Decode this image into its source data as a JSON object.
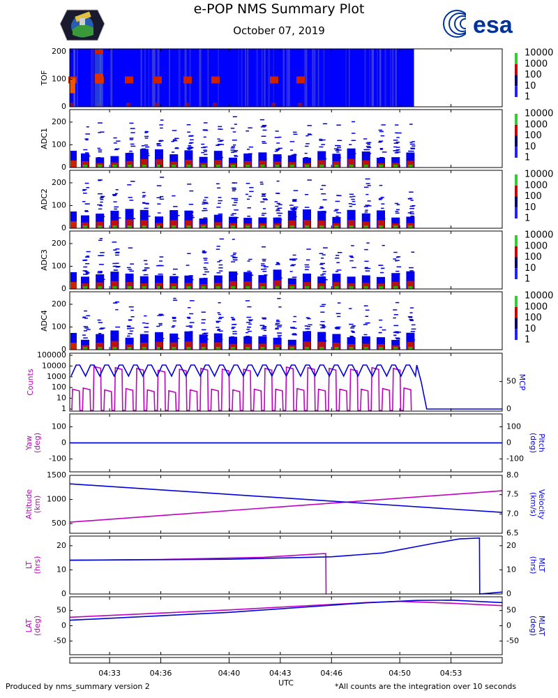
{
  "header": {
    "title": "e-POP NMS Summary Plot",
    "date": "October 07, 2019",
    "esa_logo_text": "esa"
  },
  "footer": {
    "left": "Produced by nms_summary version 2",
    "right": "*All counts are the integration over 10 seconds"
  },
  "colors": {
    "magenta": "#c000c0",
    "blue": "#0000dd",
    "spectrogram_bg": "#0000ff",
    "esa_blue": "#003399"
  },
  "chart_data": [
    {
      "type": "heatmap",
      "panel": "tof",
      "ylabel": "TOF",
      "yticks": [
        "0",
        "100",
        "200"
      ],
      "ylim": [
        0,
        210
      ],
      "colorbar_labels": [
        "10000",
        "1000",
        "100",
        "10",
        "1"
      ],
      "data_end_time": "04:50:50"
    },
    {
      "type": "heatmap",
      "panel": "adc1",
      "ylabel": "ADC1",
      "yticks": [
        "0",
        "100",
        "200"
      ],
      "ylim": [
        0,
        255
      ],
      "colorbar_labels": [
        "10000",
        "1000",
        "100",
        "10",
        "1"
      ]
    },
    {
      "type": "heatmap",
      "panel": "adc2",
      "ylabel": "ADC2",
      "yticks": [
        "0",
        "100",
        "200"
      ],
      "ylim": [
        0,
        255
      ],
      "colorbar_labels": [
        "10000",
        "1000",
        "100",
        "10",
        "1"
      ]
    },
    {
      "type": "heatmap",
      "panel": "adc3",
      "ylabel": "ADC3",
      "yticks": [
        "0",
        "100",
        "200"
      ],
      "ylim": [
        0,
        255
      ],
      "colorbar_labels": [
        "10000",
        "1000",
        "100",
        "10",
        "1"
      ]
    },
    {
      "type": "heatmap",
      "panel": "adc4",
      "ylabel": "ADC4",
      "yticks": [
        "0",
        "100",
        "200"
      ],
      "ylim": [
        0,
        255
      ],
      "colorbar_labels": [
        "10000",
        "1000",
        "100",
        "10",
        "1"
      ]
    },
    {
      "type": "line",
      "panel": "counts",
      "ylabel_left": "Counts",
      "ylabel_right": "MCP",
      "left_ticks": [
        "1",
        "10",
        "100",
        "1000",
        "10000",
        "100000"
      ],
      "right_ticks": [
        "0",
        "50"
      ],
      "series": [
        {
          "name": "Counts",
          "color": "magenta",
          "scale": "log",
          "pulse_peaks": [
            70,
            90,
            9000,
            60,
            7000,
            80,
            6000,
            60,
            4000,
            50,
            5000,
            60,
            6000,
            70,
            5000,
            60,
            5000,
            70,
            6000,
            70,
            8000,
            80,
            7000,
            70,
            6000,
            70,
            5000,
            70,
            7000,
            80,
            6000,
            90
          ]
        },
        {
          "name": "MCP",
          "color": "blue",
          "high": 80,
          "low": 60,
          "cycles": 24,
          "drop_time": "04:51:20",
          "after_drop": 0
        }
      ]
    },
    {
      "type": "line",
      "panel": "attitude",
      "ylabel_left": "Yaw\n(deg)",
      "ylabel_right": "Pitch\n(deg)",
      "left_ticks": [
        "-100",
        "0",
        "100"
      ],
      "right_ticks": [
        "-100",
        "0",
        "100"
      ],
      "ylim": [
        -180,
        180
      ],
      "series": [
        {
          "name": "Yaw",
          "color": "magenta",
          "values": [
            0,
            0
          ]
        },
        {
          "name": "Pitch",
          "color": "blue",
          "values": [
            0,
            0
          ]
        }
      ]
    },
    {
      "type": "line",
      "panel": "orbit",
      "ylabel_left": "Altitude\n(km)",
      "ylabel_right": "Velocity\n(km/s)",
      "left_ticks": [
        "500",
        "1000",
        "1500"
      ],
      "right_ticks": [
        "6.5",
        "7.0",
        "7.5",
        "8.0"
      ],
      "ylim_left": [
        300,
        1500
      ],
      "ylim_right": [
        6.5,
        8.0
      ],
      "x": [
        "04:30:40",
        "04:56:00"
      ],
      "series": [
        {
          "name": "Altitude",
          "color": "magenta",
          "values": [
            530,
            1180
          ]
        },
        {
          "name": "Velocity",
          "color": "blue",
          "values": [
            7.78,
            7.04
          ]
        }
      ]
    },
    {
      "type": "line",
      "panel": "time",
      "ylabel_left": "LT\n(hrs)",
      "ylabel_right": "MLT\n(hrs)",
      "left_ticks": [
        "0",
        "10",
        "20"
      ],
      "right_ticks": [
        "0",
        "10",
        "20"
      ],
      "ylim": [
        0,
        24
      ],
      "series": [
        {
          "name": "LT",
          "color": "magenta",
          "x": [
            "04:30:40",
            "04:36:00",
            "04:42:00",
            "04:45:30",
            "04:45:40",
            "04:45:41"
          ],
          "values": [
            14,
            14.3,
            15.2,
            16.7,
            16.7,
            0
          ]
        },
        {
          "name": "MLT",
          "color": "blue",
          "x": [
            "04:30:40",
            "04:40:00",
            "04:46:00",
            "04:49:00",
            "04:52:00",
            "04:53:30",
            "04:54:40",
            "04:54:41",
            "04:56:00"
          ],
          "values": [
            14,
            14.4,
            15.4,
            17.0,
            21.0,
            22.8,
            23.2,
            0,
            0.8
          ]
        }
      ]
    },
    {
      "type": "line",
      "panel": "lat",
      "ylabel_left": "LAT\n(deg)",
      "ylabel_right": "MLAT\n(deg)",
      "left_ticks": [
        "-50",
        "0",
        "50"
      ],
      "right_ticks": [
        "-50",
        "0",
        "50"
      ],
      "ylim": [
        -95,
        95
      ],
      "series": [
        {
          "name": "LAT",
          "color": "magenta",
          "x": [
            "04:30:40",
            "04:40:00",
            "04:48:00",
            "04:50:00",
            "04:53:00",
            "04:56:00"
          ],
          "values": [
            28,
            52,
            76,
            80,
            74,
            66
          ]
        },
        {
          "name": "MLAT",
          "color": "blue",
          "x": [
            "04:30:40",
            "04:40:00",
            "04:48:00",
            "04:51:00",
            "04:53:00",
            "04:56:00"
          ],
          "values": [
            18,
            44,
            75,
            83,
            84,
            76
          ]
        }
      ]
    },
    {
      "type": "axis",
      "panel": "utc",
      "xlabel": "UTC",
      "ticks": [
        "04:33",
        "04:36",
        "04:40",
        "04:43",
        "04:46",
        "04:50",
        "04:53"
      ],
      "tick_times": [
        "04:33:00",
        "04:36:00",
        "04:40:00",
        "04:43:00",
        "04:46:00",
        "04:50:00",
        "04:53:00"
      ],
      "xlim": [
        "04:30:40",
        "04:56:00"
      ]
    }
  ]
}
